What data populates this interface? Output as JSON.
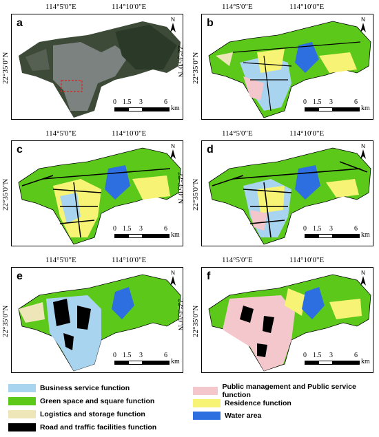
{
  "panels": [
    {
      "label": "a",
      "type": "satellite"
    },
    {
      "label": "b",
      "type": "function"
    },
    {
      "label": "c",
      "type": "function"
    },
    {
      "label": "d",
      "type": "function"
    },
    {
      "label": "e",
      "type": "function"
    },
    {
      "label": "f",
      "type": "function"
    }
  ],
  "axes": {
    "lon_ticks": [
      "114°5'0\"E",
      "114°10'0\"E"
    ],
    "lat_tick": "22°35'0\"N"
  },
  "north_label": "N",
  "scale_bar": {
    "ticks": [
      "0",
      "1.5",
      "3",
      "6"
    ],
    "unit": "km"
  },
  "legend": [
    {
      "label": "Business service function",
      "color": "#a9d4f0"
    },
    {
      "label": "Public management and Public service function",
      "color": "#f3c7cc"
    },
    {
      "label": "Green space and square function",
      "color": "#5cc91a"
    },
    {
      "label": "Residence function",
      "color": "#f7f475"
    },
    {
      "label": "Logistics and storage function",
      "color": "#eee6b8"
    },
    {
      "label": "Water area",
      "color": "#2d6fe0"
    },
    {
      "label": "Road and traffic facilities function",
      "color": "#000000"
    }
  ]
}
